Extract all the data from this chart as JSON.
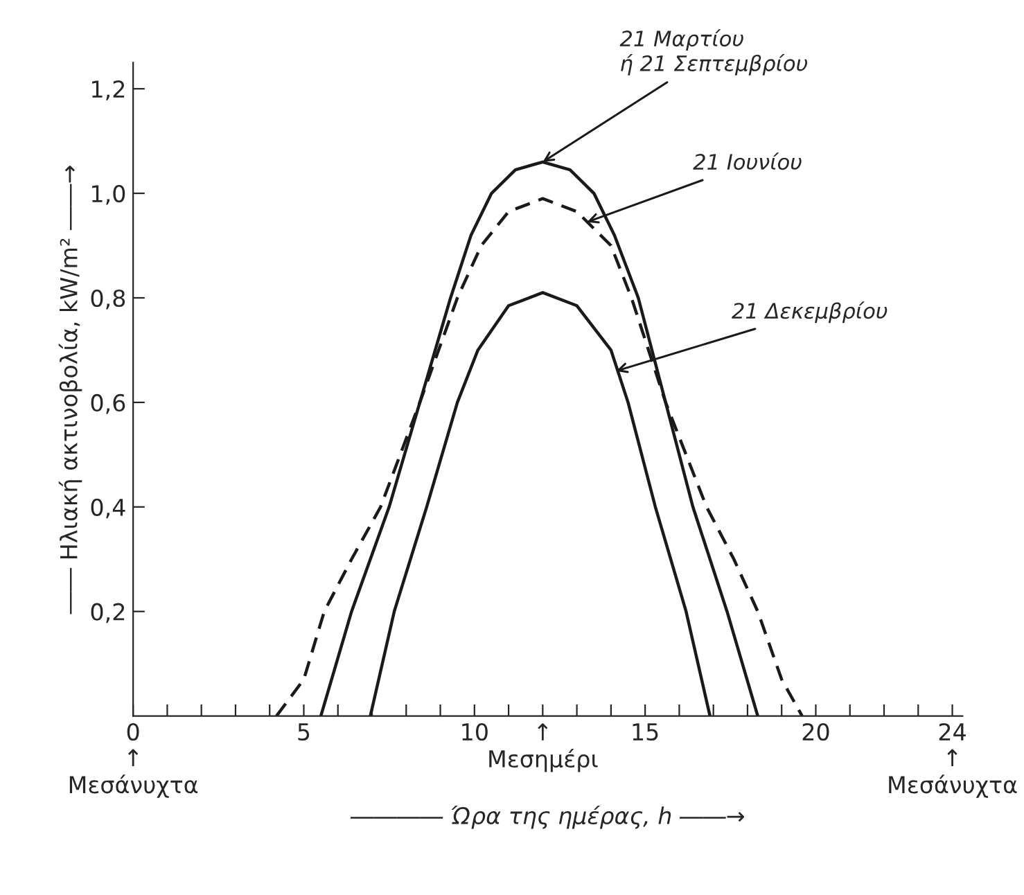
{
  "chart_data": {
    "type": "line",
    "xlabel": "―――― Ώρα της ημέρας, h ――→",
    "ylabel": "―― Ηλιακή ακτινοβολία, kW/m² ――→",
    "series": [
      {
        "color": "#1a1a1a",
        "line_style": "solid",
        "x": [
          5.5,
          6.4,
          7.5,
          8.4,
          9.3,
          9.9,
          10.5,
          11.2,
          12,
          12.8,
          13.5,
          14.1,
          14.8,
          15.6,
          16.4,
          17.4,
          18.3
        ],
        "values": [
          0,
          0.2,
          0.4,
          0.6,
          0.8,
          0.92,
          1.0,
          1.045,
          1.06,
          1.045,
          1.0,
          0.92,
          0.8,
          0.6,
          0.4,
          0.2,
          0
        ]
      },
      {
        "color": "#1a1a1a",
        "line_style": "dashed",
        "x": [
          4.2,
          5.0,
          5.6,
          6.4,
          7.25,
          8.4,
          9.5,
          10.2,
          11.0,
          12,
          13.0,
          14.0,
          14.6,
          15.6,
          16.8,
          17.6,
          18.3,
          19.0,
          19.6
        ],
        "values": [
          0,
          0.07,
          0.2,
          0.3,
          0.4,
          0.6,
          0.8,
          0.9,
          0.965,
          0.99,
          0.965,
          0.9,
          0.8,
          0.6,
          0.4,
          0.3,
          0.2,
          0.07,
          0
        ]
      },
      {
        "color": "#1a1a1a",
        "line_style": "solid",
        "x": [
          6.95,
          7.65,
          8.6,
          9.5,
          10.1,
          11.0,
          12,
          13.0,
          14.0,
          14.5,
          15.3,
          16.2,
          16.9
        ],
        "values": [
          0,
          0.2,
          0.4,
          0.6,
          0.7,
          0.785,
          0.81,
          0.785,
          0.7,
          0.6,
          0.4,
          0.2,
          0
        ]
      }
    ],
    "annotations": [
      {
        "text": "21 Μαρτίου\nή 21 Σεπτεμβρίου",
        "x": 12,
        "y": 1.06
      },
      {
        "text": "21 Ιουνίου",
        "x": 13.3,
        "y": 0.945
      },
      {
        "text": "21 Δεκεμβρίου",
        "x": 14.15,
        "y": 0.66
      }
    ],
    "xlim": [
      0,
      24.3
    ],
    "ylim": [
      0,
      1.25
    ],
    "xticks": [
      {
        "value": 0,
        "label": "0\n↑\nΜεσάνυχτα"
      },
      {
        "value": 1,
        "label": null
      },
      {
        "value": 2,
        "label": null
      },
      {
        "value": 3,
        "label": null
      },
      {
        "value": 4,
        "label": null
      },
      5,
      {
        "value": 6,
        "label": null
      },
      {
        "value": 7,
        "label": null
      },
      {
        "value": 8,
        "label": null
      },
      {
        "value": 9,
        "label": null
      },
      10,
      {
        "value": 11,
        "label": null
      },
      {
        "value": 12,
        "label": "↑\nΜεσημέρι"
      },
      {
        "value": 13,
        "label": null
      },
      {
        "value": 14,
        "label": null
      },
      15,
      {
        "value": 16,
        "label": null
      },
      {
        "value": 17,
        "label": null
      },
      {
        "value": 18,
        "label": null
      },
      {
        "value": 19,
        "label": null
      },
      20,
      {
        "value": 21,
        "label": null
      },
      {
        "value": 22,
        "label": null
      },
      {
        "value": 23,
        "label": null
      },
      {
        "value": 24,
        "label": "24\n↑\nΜεσάνυχτα"
      }
    ],
    "yticks": [
      {
        "value": 0.2,
        "label": "0,2"
      },
      {
        "value": 0.4,
        "label": "0,4"
      },
      {
        "value": 0.6,
        "label": "0,6"
      },
      {
        "value": 0.8,
        "label": "0,8"
      },
      {
        "value": 1.0,
        "label": "1,0"
      },
      {
        "value": 1.2,
        "label": "1,2"
      }
    ],
    "grid": false,
    "legend": false
  }
}
